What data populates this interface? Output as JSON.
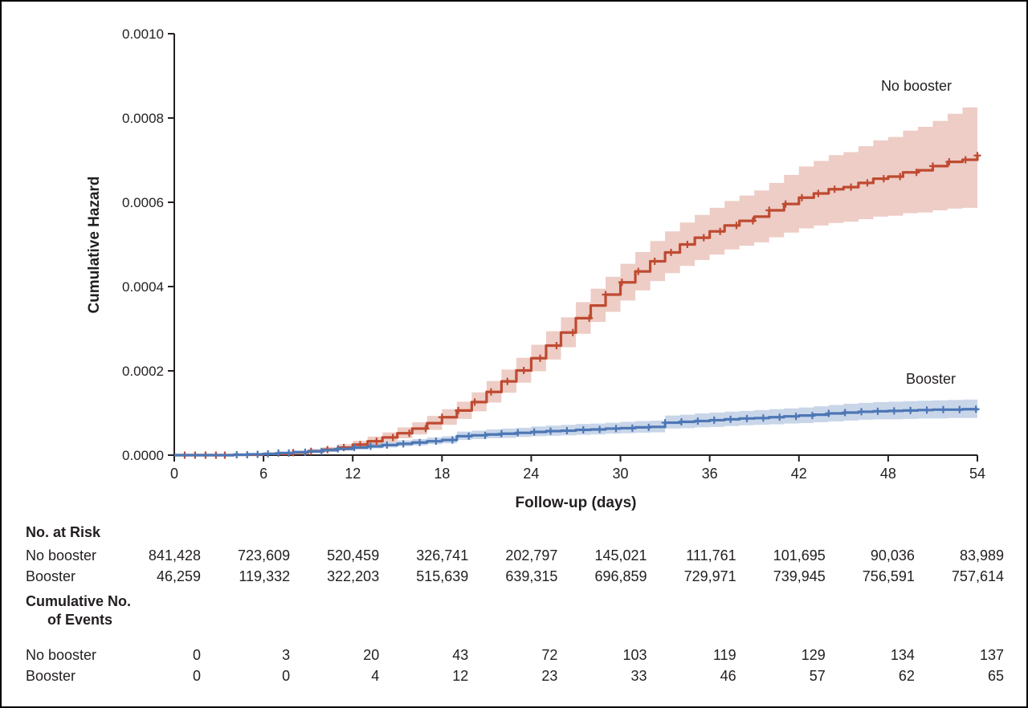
{
  "chart_data": {
    "type": "line",
    "chart_style": "step-cumulative-hazard-with-confidence-bands",
    "title": "",
    "xlabel": "Follow-up (days)",
    "ylabel": "Cumulative Hazard",
    "xlim": [
      0,
      54
    ],
    "ylim": [
      0,
      0.001
    ],
    "x_ticks": [
      0,
      6,
      12,
      18,
      24,
      30,
      36,
      42,
      48,
      54
    ],
    "y_ticks": [
      0,
      0.0002,
      0.0004,
      0.0006,
      0.0008,
      0.001
    ],
    "y_tick_labels": [
      "0.0000",
      "0.0002",
      "0.0004",
      "0.0006",
      "0.0008",
      "0.0010"
    ],
    "grid": false,
    "legend": "inline-annotations",
    "series": [
      {
        "name": "No booster",
        "color": "#bf4a31",
        "band_color": "rgba(191,74,49,0.28)",
        "points": [
          [
            0,
            0,
            0,
            0
          ],
          [
            4,
            1e-06,
            0,
            3e-06
          ],
          [
            6,
            3e-06,
            1e-06,
            6e-06
          ],
          [
            8,
            6e-06,
            3e-06,
            1e-05
          ],
          [
            9,
            9e-06,
            5e-06,
            1.4e-05
          ],
          [
            10,
            1.3e-05,
            8e-06,
            1.9e-05
          ],
          [
            11,
            1.8e-05,
            1.2e-05,
            2.6e-05
          ],
          [
            12,
            2.5e-05,
            1.7e-05,
            3.4e-05
          ],
          [
            13,
            3.3e-05,
            2.4e-05,
            4.4e-05
          ],
          [
            14,
            4.2e-05,
            3.1e-05,
            5.4e-05
          ],
          [
            15,
            5.2e-05,
            4e-05,
            6.6e-05
          ],
          [
            16,
            6.3e-05,
            4.9e-05,
            7.8e-05
          ],
          [
            17,
            7.6e-05,
            6e-05,
            9.3e-05
          ],
          [
            18,
            9e-05,
            7.2e-05,
            0.000109
          ],
          [
            19,
            0.000106,
            8.6e-05,
            0.000127
          ],
          [
            20,
            0.000126,
            0.000104,
            0.000149
          ],
          [
            21,
            0.00015,
            0.000125,
            0.000176
          ],
          [
            22,
            0.000175,
            0.000148,
            0.000203
          ],
          [
            23,
            0.000201,
            0.000172,
            0.000231
          ],
          [
            24,
            0.00023,
            0.000199,
            0.000262
          ],
          [
            25,
            0.00026,
            0.000227,
            0.000294
          ],
          [
            26,
            0.000291,
            0.000256,
            0.000327
          ],
          [
            27,
            0.000325,
            0.000288,
            0.000363
          ],
          [
            28,
            0.000355,
            0.000316,
            0.000395
          ],
          [
            29,
            0.000381,
            0.00034,
            0.000423
          ],
          [
            30,
            0.00041,
            0.000367,
            0.000454
          ],
          [
            31,
            0.000436,
            0.000391,
            0.000482
          ],
          [
            32,
            0.00046,
            0.000413,
            0.000508
          ],
          [
            33,
            0.000481,
            0.000432,
            0.000531
          ],
          [
            34,
            0.0005,
            0.000449,
            0.000552
          ],
          [
            35,
            0.000516,
            0.000463,
            0.00057
          ],
          [
            36,
            0.000531,
            0.000476,
            0.000587
          ],
          [
            37,
            0.000545,
            0.000488,
            0.000603
          ],
          [
            38,
            0.000556,
            0.000497,
            0.000616
          ],
          [
            39,
            0.000566,
            0.000505,
            0.000628
          ],
          [
            40,
            0.000581,
            0.000517,
            0.000646
          ],
          [
            41,
            0.000596,
            0.000528,
            0.000665
          ],
          [
            42,
            0.000611,
            0.000538,
            0.000685
          ],
          [
            43,
            0.000621,
            0.000545,
            0.000698
          ],
          [
            44,
            0.000631,
            0.000551,
            0.000712
          ],
          [
            45,
            0.000636,
            0.000554,
            0.000719
          ],
          [
            46,
            0.000646,
            0.00056,
            0.000733
          ],
          [
            47,
            0.000656,
            0.000566,
            0.000747
          ],
          [
            48,
            0.000661,
            0.000568,
            0.000755
          ],
          [
            49,
            0.000671,
            0.000574,
            0.00077
          ],
          [
            50,
            0.000676,
            0.000576,
            0.000779
          ],
          [
            51,
            0.000686,
            0.000581,
            0.000793
          ],
          [
            52,
            0.000696,
            0.000585,
            0.00081
          ],
          [
            53,
            0.000701,
            0.000587,
            0.000825
          ],
          [
            54,
            0.000711,
            0.00059,
            0.000845
          ]
        ],
        "censor_x": [
          0.7,
          1.4,
          2.1,
          2.8,
          3.4,
          8,
          9.2,
          10.3,
          11.4,
          12.5,
          13.6,
          14.7,
          15.8,
          16.9,
          18,
          19.1,
          20.2,
          21.3,
          22.4,
          23.5,
          24.6,
          25.7,
          26.8,
          27.9,
          29,
          30.1,
          31.2,
          32.3,
          33.4,
          34.5,
          35.6,
          36.7,
          37.8,
          38.9,
          40,
          41.1,
          42.2,
          43.3,
          44.4,
          45.5,
          46.6,
          47.7,
          48.8,
          49.9,
          51,
          52.1,
          53.2,
          54
        ]
      },
      {
        "name": "Booster",
        "color": "#4d77b5",
        "band_color": "rgba(77,119,181,0.30)",
        "points": [
          [
            0,
            0,
            0,
            0
          ],
          [
            4,
            1e-06,
            0,
            3e-06
          ],
          [
            5,
            2e-06,
            0,
            4e-06
          ],
          [
            6,
            3e-06,
            1e-06,
            6e-06
          ],
          [
            7,
            5e-06,
            2e-06,
            8e-06
          ],
          [
            8,
            7e-06,
            4e-06,
            1.1e-05
          ],
          [
            9,
            9e-06,
            6e-06,
            1.4e-05
          ],
          [
            10,
            1.2e-05,
            8e-06,
            1.7e-05
          ],
          [
            11,
            1.5e-05,
            1.1e-05,
            2.1e-05
          ],
          [
            12,
            1.8e-05,
            1.3e-05,
            2.4e-05
          ],
          [
            13,
            2.1e-05,
            1.6e-05,
            2.8e-05
          ],
          [
            14,
            2.4e-05,
            1.8e-05,
            3.1e-05
          ],
          [
            15,
            2.7e-05,
            2.1e-05,
            3.5e-05
          ],
          [
            16,
            3e-05,
            2.3e-05,
            3.8e-05
          ],
          [
            17,
            3.3e-05,
            2.6e-05,
            4.2e-05
          ],
          [
            18,
            3.6e-05,
            2.8e-05,
            4.5e-05
          ],
          [
            19,
            4.5e-05,
            3.6e-05,
            5.6e-05
          ],
          [
            20,
            4.7e-05,
            3.8e-05,
            5.8e-05
          ],
          [
            21,
            4.9e-05,
            4e-05,
            6.1e-05
          ],
          [
            22,
            5.1e-05,
            4.1e-05,
            6.3e-05
          ],
          [
            23,
            5.3e-05,
            4.3e-05,
            6.5e-05
          ],
          [
            24,
            5.5e-05,
            4.5e-05,
            6.8e-05
          ],
          [
            25,
            5.7e-05,
            4.6e-05,
            7e-05
          ],
          [
            26,
            5.8e-05,
            4.7e-05,
            7.2e-05
          ],
          [
            27,
            6e-05,
            4.8e-05,
            7.4e-05
          ],
          [
            28,
            6.1e-05,
            4.9e-05,
            7.5e-05
          ],
          [
            29,
            6.3e-05,
            5.1e-05,
            7.7e-05
          ],
          [
            30,
            6.4e-05,
            5.2e-05,
            7.9e-05
          ],
          [
            31,
            6.6e-05,
            5.3e-05,
            8.1e-05
          ],
          [
            32,
            6.7e-05,
            5.4e-05,
            8.2e-05
          ],
          [
            33,
            7.7e-05,
            6.3e-05,
            9.4e-05
          ],
          [
            34,
            7.9e-05,
            6.4e-05,
            9.6e-05
          ],
          [
            35,
            8.1e-05,
            6.6e-05,
            9.9e-05
          ],
          [
            36,
            8.3e-05,
            6.7e-05,
            0.000101
          ],
          [
            37,
            8.5e-05,
            6.9e-05,
            0.000103
          ],
          [
            38,
            8.7e-05,
            7.1e-05,
            0.000105
          ],
          [
            39,
            8.8e-05,
            7.2e-05,
            0.000107
          ],
          [
            40,
            9e-05,
            7.3e-05,
            0.000109
          ],
          [
            41,
            9.2e-05,
            7.5e-05,
            0.000111
          ],
          [
            42,
            9.4e-05,
            7.6e-05,
            0.000113
          ],
          [
            43,
            9.6e-05,
            7.8e-05,
            0.000116
          ],
          [
            44,
            9.9e-05,
            8e-05,
            0.000119
          ],
          [
            45,
            0.000101,
            8.2e-05,
            0.000122
          ],
          [
            46,
            0.000103,
            8.4e-05,
            0.000124
          ],
          [
            47,
            0.000104,
            8.5e-05,
            0.000126
          ],
          [
            48,
            0.000105,
            8.5e-05,
            0.000127
          ],
          [
            49,
            0.000106,
            8.6e-05,
            0.000128
          ],
          [
            50,
            0.000107,
            8.7e-05,
            0.000129
          ],
          [
            51,
            0.000108,
            8.7e-05,
            0.00013
          ],
          [
            52,
            0.000108,
            8.8e-05,
            0.000131
          ],
          [
            53,
            0.000109,
            8.8e-05,
            0.000132
          ],
          [
            54,
            0.00011,
            8.9e-05,
            0.000133
          ]
        ],
        "censor_x": [
          4.2,
          4.9,
          5.6,
          6.3,
          7,
          7.7,
          8.8,
          9.9,
          11,
          12.1,
          13.2,
          14.3,
          15.4,
          16.5,
          17.6,
          18.7,
          19.8,
          20.9,
          22,
          23.1,
          24.2,
          25.3,
          26.4,
          27.5,
          28.6,
          29.7,
          30.8,
          31.9,
          33,
          34.1,
          35.2,
          36.3,
          37.4,
          38.5,
          39.6,
          40.7,
          41.8,
          42.9,
          44,
          45.1,
          46.2,
          47.3,
          48.4,
          49.5,
          50.6,
          51.7,
          52.8,
          53.9
        ]
      }
    ]
  },
  "risk_table": {
    "heading": "No. at Risk",
    "columns_days": [
      0,
      6,
      12,
      18,
      24,
      30,
      36,
      42,
      48,
      54
    ],
    "rows": [
      {
        "label": "No booster",
        "values": [
          "841,428",
          "723,609",
          "520,459",
          "326,741",
          "202,797",
          "145,021",
          "111,761",
          "101,695",
          "90,036",
          "83,989"
        ]
      },
      {
        "label": "Booster",
        "values": [
          "46,259",
          "119,332",
          "322,203",
          "515,639",
          "639,315",
          "696,859",
          "729,971",
          "739,945",
          "756,591",
          "757,614"
        ]
      }
    ],
    "events_heading_line1": "Cumulative No.",
    "events_heading_line2": "of Events",
    "events_rows": [
      {
        "label": "No booster",
        "values": [
          "0",
          "3",
          "20",
          "43",
          "72",
          "103",
          "119",
          "129",
          "134",
          "137"
        ]
      },
      {
        "label": "Booster",
        "values": [
          "0",
          "0",
          "4",
          "12",
          "23",
          "33",
          "46",
          "57",
          "62",
          "65"
        ]
      }
    ]
  }
}
